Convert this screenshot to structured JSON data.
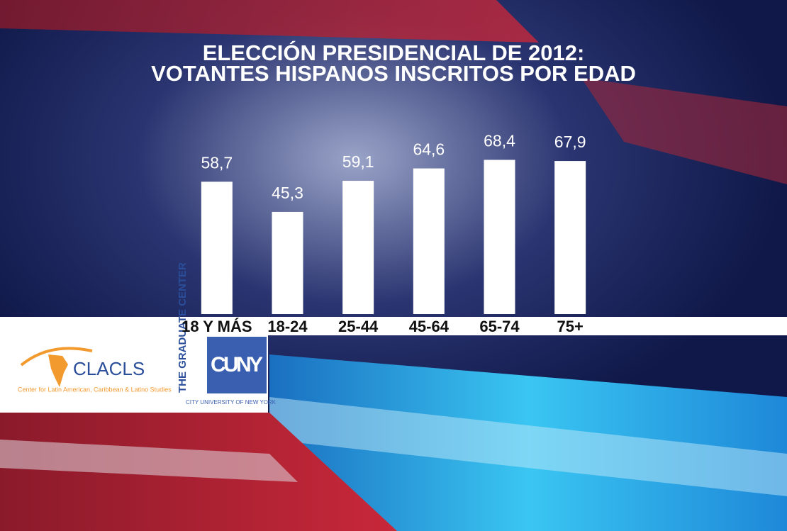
{
  "chart_data": {
    "type": "bar",
    "title": "ELECCIÓN PRESIDENCIAL DE 2012:",
    "subtitle": "VOTANTES HISPANOS INSCRITOS POR EDAD",
    "categories": [
      "18 Y MÁS",
      "18-24",
      "25-44",
      "45-64",
      "65-74",
      "75+"
    ],
    "values": [
      58.7,
      45.3,
      59.1,
      64.6,
      68.4,
      67.9
    ],
    "value_labels": [
      "58,7",
      "45,3",
      "59,1",
      "64,6",
      "68,4",
      "67,9"
    ],
    "color": "#ffffff",
    "ylim": [
      0,
      100
    ]
  },
  "logos": {
    "clacls": "CLACLS",
    "clacls_caption": "Center for Latin American, Caribbean & Latino Studies",
    "graduate_center": "THE GRADUATE CENTER",
    "cuny": "CUNY",
    "cuny_caption": "CITY UNIVERSITY OF NEW YORK"
  }
}
